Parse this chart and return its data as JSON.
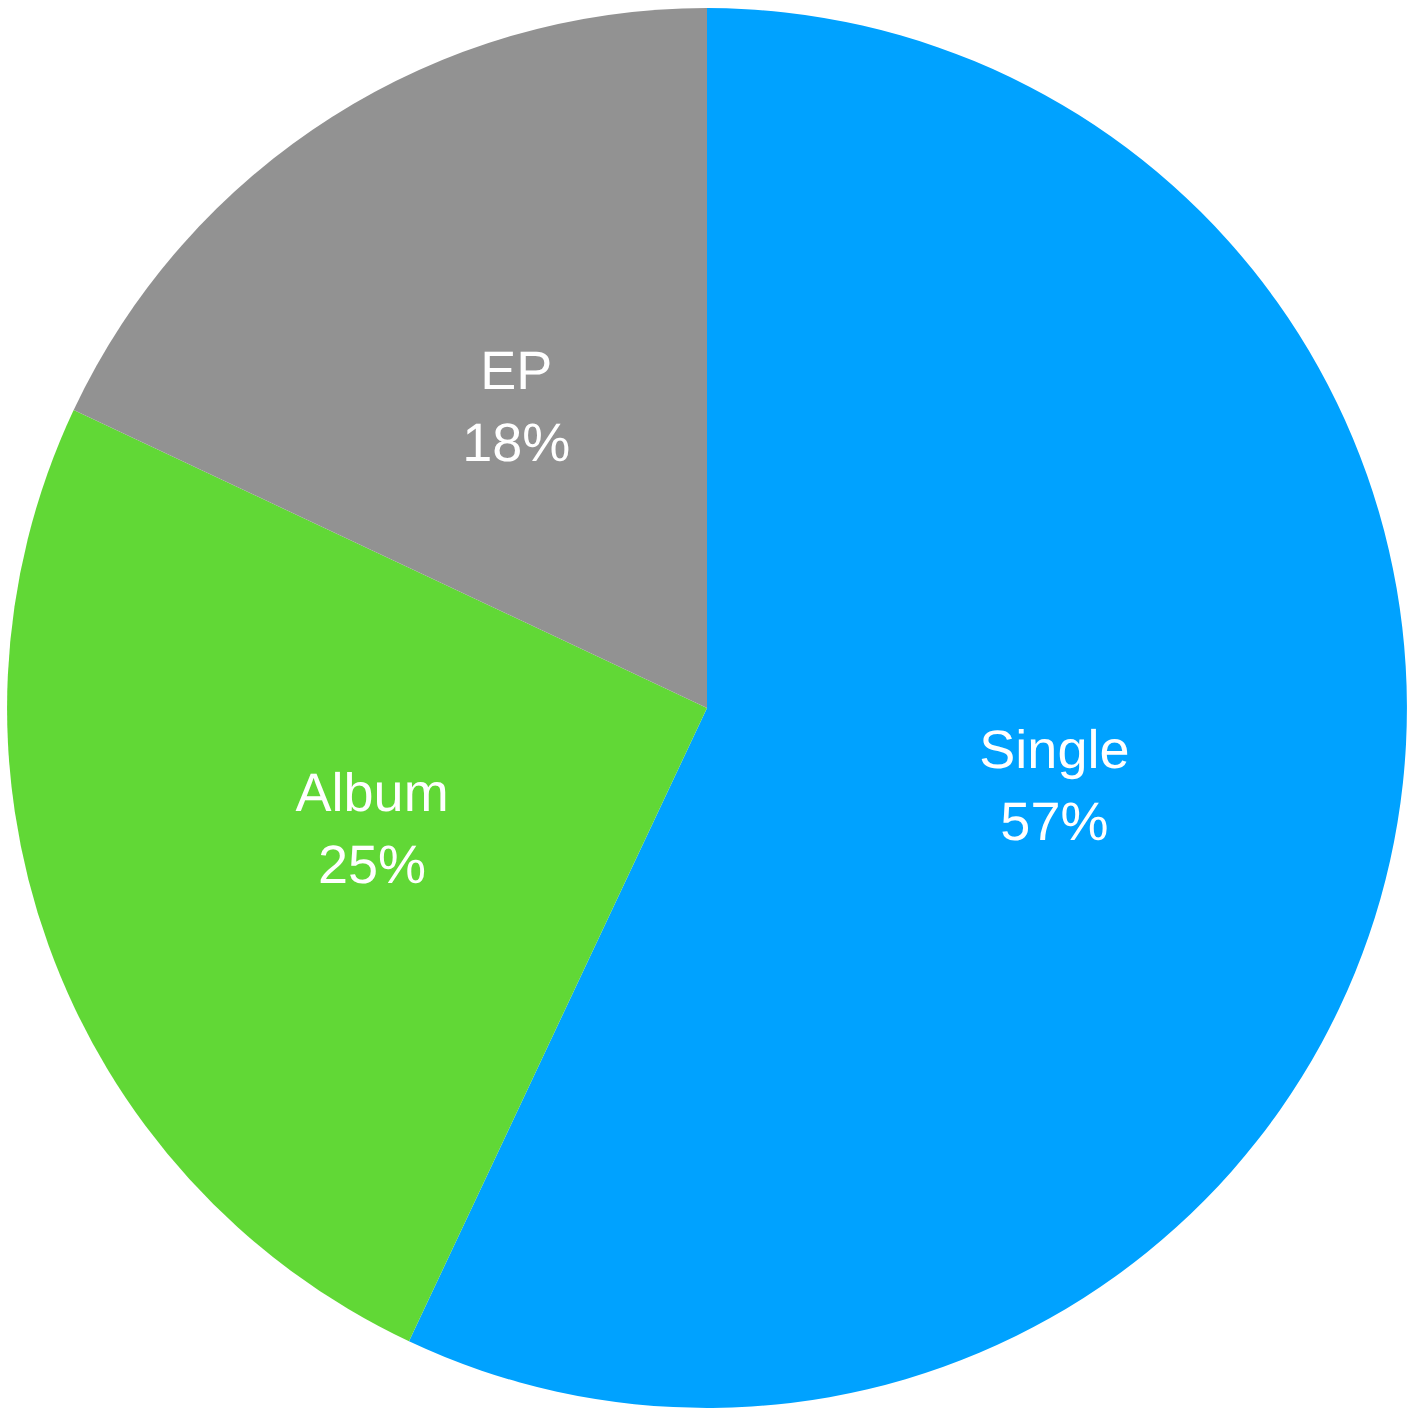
{
  "chart_data": {
    "type": "pie",
    "categories": [
      "Single",
      "Album",
      "EP"
    ],
    "values": [
      57,
      25,
      18
    ],
    "colors": [
      "#00a2ff",
      "#61d836",
      "#929292"
    ],
    "value_labels": [
      "57%",
      "25%",
      "18%"
    ],
    "legend": false
  }
}
